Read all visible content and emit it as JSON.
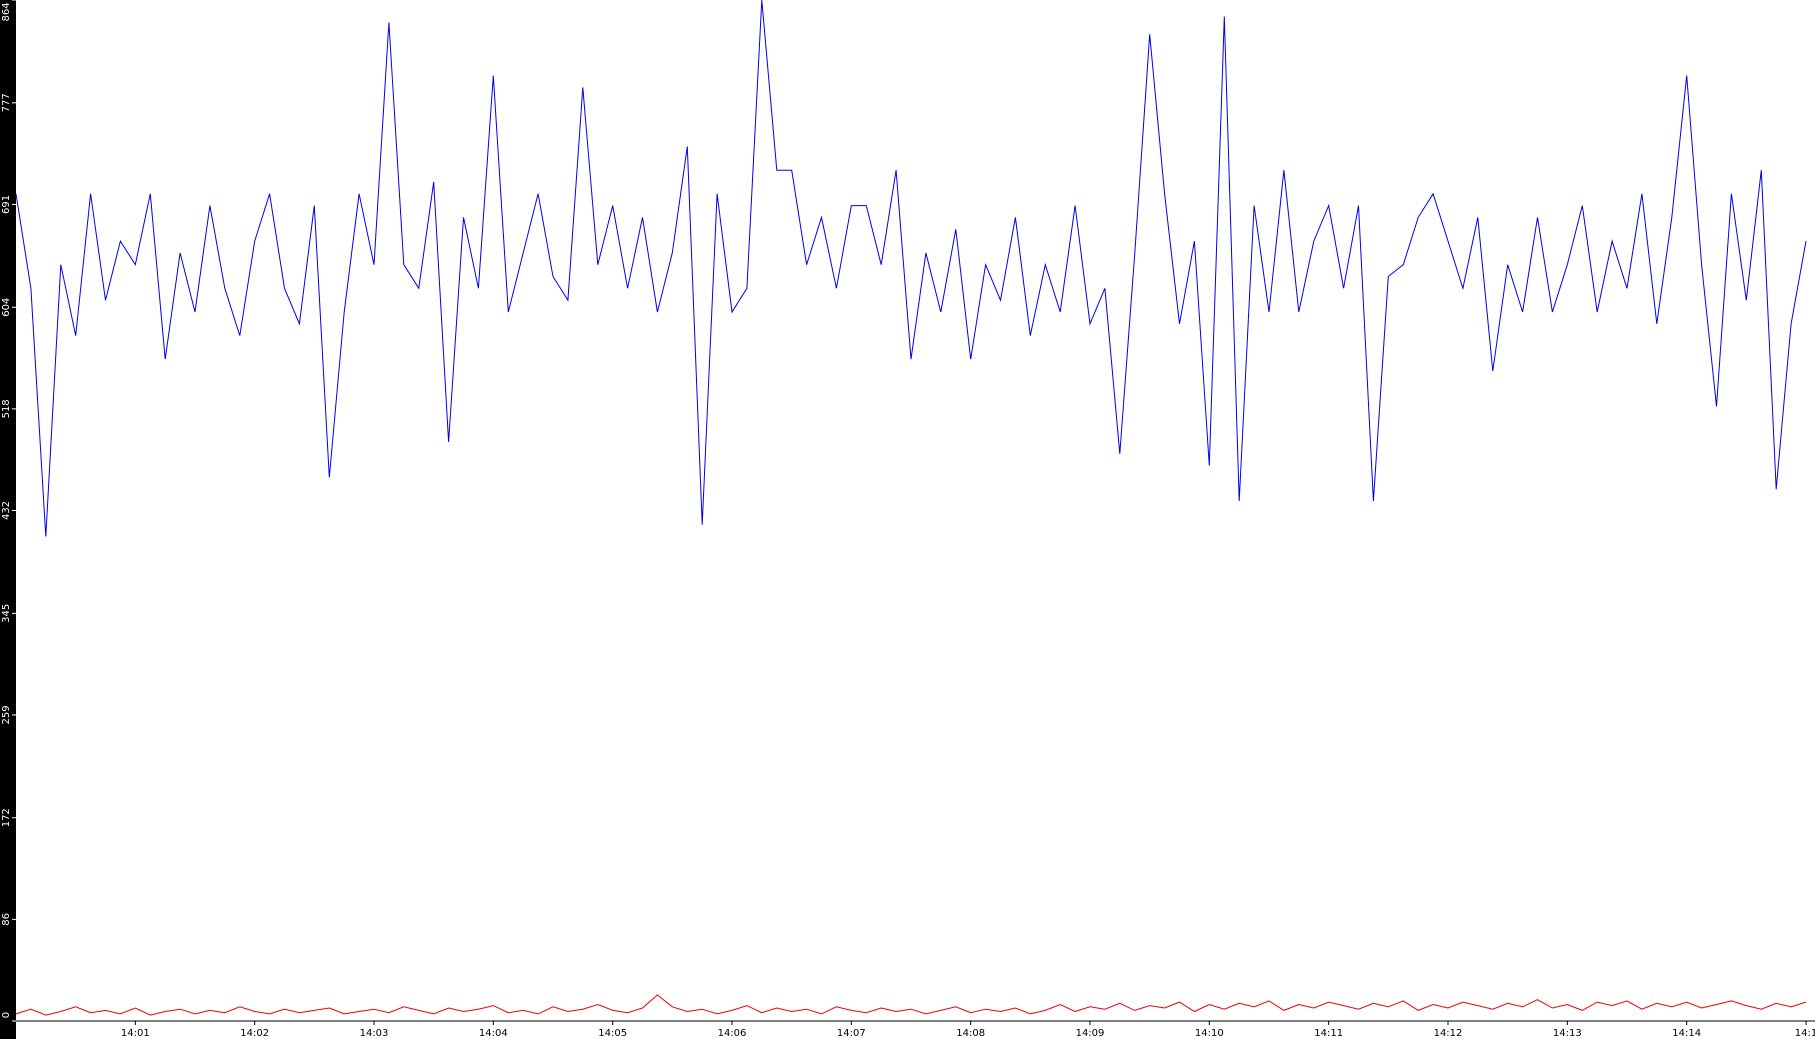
{
  "chart_data": {
    "type": "line",
    "categories": [
      null,
      null,
      null,
      null,
      null,
      null,
      null,
      null,
      "14:01",
      null,
      null,
      null,
      null,
      null,
      null,
      null,
      "14:02",
      null,
      null,
      null,
      null,
      null,
      null,
      null,
      "14:03",
      null,
      null,
      null,
      null,
      null,
      null,
      null,
      "14:04",
      null,
      null,
      null,
      null,
      null,
      null,
      null,
      "14:05",
      null,
      null,
      null,
      null,
      null,
      null,
      null,
      "14:06",
      null,
      null,
      null,
      null,
      null,
      null,
      null,
      "14:07",
      null,
      null,
      null,
      null,
      null,
      null,
      null,
      "14:08",
      null,
      null,
      null,
      null,
      null,
      null,
      null,
      "14:09",
      null,
      null,
      null,
      null,
      null,
      null,
      null,
      "14:10",
      null,
      null,
      null,
      null,
      null,
      null,
      null,
      "14:11",
      null,
      null,
      null,
      null,
      null,
      null,
      null,
      "14:12",
      null,
      null,
      null,
      null,
      null,
      null,
      null,
      "14:13",
      null,
      null,
      null,
      null,
      null,
      null,
      null,
      "14:14",
      null,
      null,
      null,
      null,
      null,
      null,
      null,
      "14:1"
    ],
    "series": [
      {
        "color": "#0000ee",
        "values": [
          700,
          620,
          410,
          640,
          580,
          700,
          610,
          660,
          640,
          700,
          560,
          650,
          600,
          690,
          620,
          580,
          660,
          700,
          620,
          590,
          690,
          460,
          600,
          700,
          640,
          845,
          640,
          620,
          710,
          490,
          680,
          620,
          800,
          600,
          650,
          700,
          630,
          610,
          790,
          640,
          690,
          620,
          680,
          600,
          650,
          740,
          420,
          700,
          600,
          620,
          864,
          720,
          720,
          640,
          680,
          620,
          690,
          690,
          640,
          720,
          560,
          650,
          600,
          670,
          560,
          640,
          610,
          680,
          580,
          640,
          600,
          690,
          590,
          620,
          480,
          650,
          835,
          700,
          590,
          660,
          470,
          850,
          440,
          690,
          600,
          720,
          600,
          660,
          690,
          620,
          690,
          440,
          630,
          640,
          680,
          700,
          660,
          620,
          680,
          550,
          640,
          600,
          680,
          600,
          640,
          690,
          600,
          660,
          620,
          700,
          590,
          680,
          800,
          640,
          520,
          700,
          610,
          720,
          450,
          590,
          660
        ]
      },
      {
        "color": "#ee0000",
        "values": [
          6,
          10,
          5,
          8,
          12,
          7,
          9,
          6,
          11,
          5,
          8,
          10,
          6,
          9,
          7,
          12,
          8,
          6,
          10,
          7,
          9,
          11,
          6,
          8,
          10,
          7,
          12,
          9,
          6,
          11,
          8,
          10,
          13,
          7,
          9,
          6,
          12,
          8,
          10,
          14,
          9,
          7,
          11,
          22,
          12,
          8,
          10,
          6,
          9,
          13,
          7,
          11,
          8,
          10,
          6,
          12,
          9,
          7,
          11,
          8,
          10,
          6,
          9,
          12,
          7,
          10,
          8,
          11,
          6,
          9,
          14,
          8,
          12,
          10,
          15,
          9,
          13,
          11,
          16,
          8,
          14,
          10,
          15,
          12,
          17,
          9,
          14,
          11,
          16,
          13,
          10,
          15,
          12,
          17,
          9,
          14,
          11,
          16,
          13,
          10,
          15,
          12,
          18,
          11,
          14,
          9,
          16,
          13,
          17,
          10,
          15,
          12,
          16,
          11,
          14,
          17,
          13,
          10,
          15,
          12,
          16
        ]
      }
    ],
    "ylim": [
      0,
      864
    ],
    "yticks": [
      0,
      86,
      172,
      259,
      345,
      432,
      518,
      604,
      691,
      777,
      864
    ]
  }
}
